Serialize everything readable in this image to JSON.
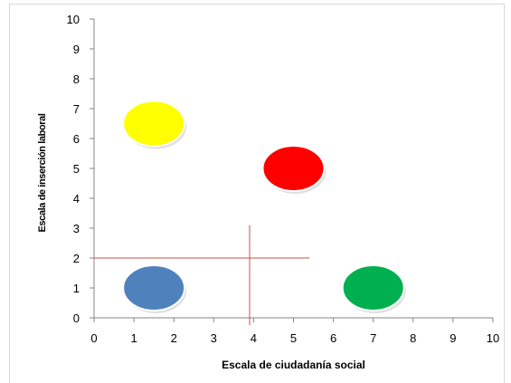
{
  "chart_data": {
    "type": "bubble",
    "xlabel": "Escala  de  ciudadanía  social",
    "ylabel": "Escala de inserción laboral",
    "xlim": [
      0,
      10
    ],
    "ylim": [
      0,
      10
    ],
    "x_ticks": [
      "0",
      "1",
      "2",
      "3",
      "4",
      "5",
      "6",
      "7",
      "8",
      "9",
      "10"
    ],
    "y_ticks": [
      "0",
      "1",
      "2",
      "3",
      "4",
      "5",
      "6",
      "7",
      "8",
      "9",
      "10"
    ],
    "grid": false,
    "legend": "none",
    "points": [
      {
        "x": 1.5,
        "y": 6.5,
        "color": "#ffff00",
        "stroke": "#d6d200"
      },
      {
        "x": 5.0,
        "y": 5.0,
        "color": "#ff0000",
        "stroke": "#c00000"
      },
      {
        "x": 1.5,
        "y": 1.0,
        "color": "#4f81bd",
        "stroke": "#2f5f8f"
      },
      {
        "x": 7.0,
        "y": 1.0,
        "color": "#00b050",
        "stroke": "#008a3d"
      }
    ],
    "reference_lines": [
      {
        "orientation": "horizontal",
        "y": 2.0,
        "x_from": 0.0,
        "x_to": 5.4,
        "color": "#c0504d"
      },
      {
        "orientation": "vertical",
        "x": 3.9,
        "y_from": -0.25,
        "y_to": 3.1,
        "color": "#c0504d"
      }
    ]
  }
}
